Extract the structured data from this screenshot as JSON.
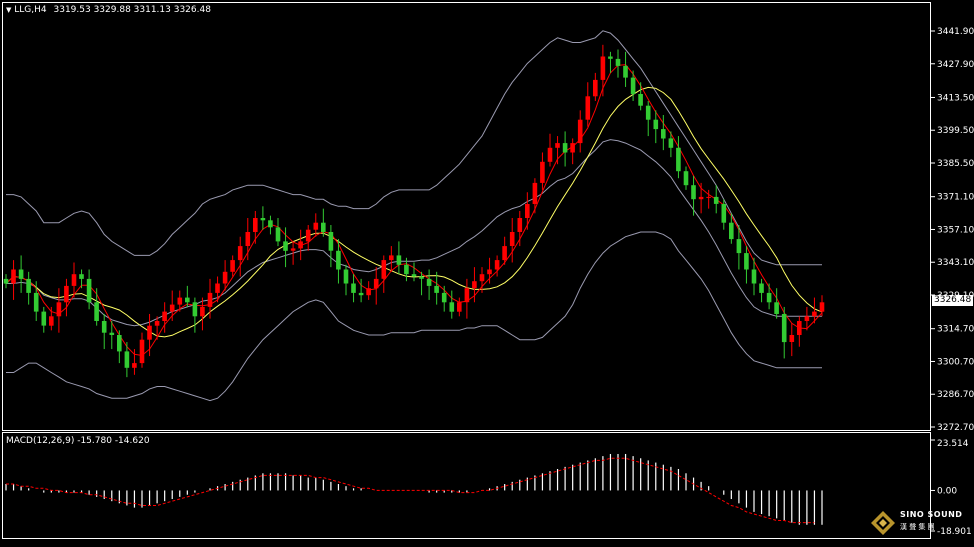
{
  "header": {
    "menu_glyph": "▼",
    "symbol": "LLG,H4",
    "ohlc": "3319.53 3329.88 3311.13 3326.48"
  },
  "macd": {
    "label": "MACD(12,26,9) -15.780 -14.620"
  },
  "current_price": "3326.48",
  "colors": {
    "background": "#000000",
    "bull": "#ff0000",
    "bear": "#33cc33",
    "ma_red": "#ff0000",
    "ma_yellow": "#ffff66",
    "band": "#9a9ab0",
    "macd_hist": "#ffffff",
    "macd_signal": "#ff0000",
    "axis": "#ffffff"
  },
  "logo": {
    "icon": "diamond-logo-icon",
    "name": "SINO SOUND",
    "sub": "漢 聲 集 團"
  },
  "chart_data": [
    {
      "type": "candlestick",
      "title": "LLG,H4",
      "yticks": [
        "3441.90",
        "3427.90",
        "3413.50",
        "3399.50",
        "3385.50",
        "3371.10",
        "3357.10",
        "3343.10",
        "3329.10",
        "3314.70",
        "3300.70",
        "3286.70",
        "3272.70"
      ],
      "ylim": [
        3272.7,
        3448
      ],
      "last_price": 3326.48,
      "indicators": [
        "bollinger_bands",
        "moving_average_red",
        "moving_average_yellow"
      ],
      "grid": false,
      "close": [
        3334,
        3340,
        3336,
        3330,
        3322,
        3316,
        3320,
        3326,
        3333,
        3338,
        3336,
        3326,
        3318,
        3313,
        3312,
        3305,
        3298,
        3300,
        3310,
        3316,
        3318,
        3322,
        3325,
        3328,
        3326,
        3320,
        3324,
        3330,
        3334,
        3339,
        3344,
        3350,
        3356,
        3362,
        3361,
        3358,
        3352,
        3348,
        3349,
        3352,
        3357,
        3360,
        3356,
        3348,
        3340,
        3334,
        3330,
        3329,
        3332,
        3336,
        3344,
        3346,
        3342,
        3338,
        3337,
        3336,
        3333,
        3330,
        3326,
        3322,
        3326,
        3332,
        3335,
        3338,
        3340,
        3344,
        3350,
        3356,
        3362,
        3368,
        3377,
        3386,
        3392,
        3394,
        3390,
        3394,
        3404,
        3414,
        3421,
        3431,
        3430,
        3427,
        3422,
        3415,
        3410,
        3404,
        3400,
        3396,
        3392,
        3382,
        3376,
        3370,
        3371,
        3371,
        3368,
        3360,
        3353,
        3347,
        3340,
        3334,
        3330,
        3326,
        3321,
        3309,
        3312,
        3318,
        3320,
        3322,
        3326
      ],
      "bollinger": {
        "upper": [
          3372,
          3372,
          3371,
          3368,
          3365,
          3360,
          3360,
          3360,
          3362,
          3364,
          3365,
          3364,
          3360,
          3355,
          3352,
          3350,
          3348,
          3346,
          3346,
          3346,
          3348,
          3351,
          3355,
          3358,
          3361,
          3364,
          3368,
          3370,
          3371,
          3372,
          3374,
          3375,
          3376,
          3376,
          3376,
          3375,
          3374,
          3373,
          3372,
          3372,
          3371,
          3370,
          3370,
          3368,
          3367,
          3367,
          3366,
          3366,
          3366,
          3368,
          3371,
          3373,
          3374,
          3374,
          3374,
          3374,
          3374,
          3376,
          3379,
          3382,
          3385,
          3389,
          3393,
          3397,
          3403,
          3409,
          3415,
          3420,
          3424,
          3428,
          3431,
          3434,
          3437,
          3439,
          3438,
          3437,
          3437,
          3438,
          3439,
          3442,
          3441,
          3438,
          3434,
          3430,
          3426,
          3421,
          3416,
          3411,
          3406,
          3401,
          3396,
          3391,
          3386,
          3381,
          3376,
          3370,
          3364,
          3358,
          3352,
          3347,
          3344,
          3343,
          3342,
          3342,
          3342,
          3342,
          3342,
          3342,
          3342
        ],
        "lower": [
          3296,
          3296,
          3298,
          3300,
          3300,
          3298,
          3296,
          3294,
          3292,
          3291,
          3290,
          3289,
          3287,
          3286,
          3285,
          3285,
          3285,
          3286,
          3287,
          3289,
          3290,
          3290,
          3289,
          3288,
          3287,
          3286,
          3285,
          3284,
          3285,
          3288,
          3292,
          3297,
          3302,
          3306,
          3310,
          3313,
          3316,
          3319,
          3322,
          3324,
          3326,
          3327,
          3326,
          3322,
          3318,
          3316,
          3314,
          3313,
          3312,
          3312,
          3312,
          3313,
          3313,
          3313,
          3313,
          3314,
          3314,
          3314,
          3314,
          3314,
          3314,
          3315,
          3315,
          3316,
          3316,
          3316,
          3314,
          3312,
          3310,
          3310,
          3310,
          3311,
          3314,
          3317,
          3320,
          3325,
          3332,
          3338,
          3343,
          3347,
          3350,
          3352,
          3354,
          3355,
          3356,
          3356,
          3356,
          3355,
          3353,
          3348,
          3344,
          3340,
          3336,
          3331,
          3325,
          3319,
          3313,
          3308,
          3304,
          3301,
          3300,
          3299,
          3298,
          3298,
          3298,
          3298,
          3298,
          3298,
          3298
        ]
      }
    },
    {
      "type": "bar",
      "title": "MACD(12,26,9)",
      "values": {
        "macd": -15.78,
        "signal": -14.62
      },
      "yticks": [
        "23.514",
        "0.00",
        "-18.901"
      ],
      "ylim": [
        -18.901,
        23.514
      ],
      "histogram": [
        3,
        3,
        2,
        1,
        0,
        -1,
        -1,
        -1,
        -1,
        -1,
        -1,
        -2,
        -3,
        -4,
        -5,
        -6,
        -7,
        -8,
        -8,
        -7,
        -6,
        -5,
        -4,
        -3,
        -2,
        -1,
        0,
        1,
        2,
        3,
        4,
        5,
        6,
        7,
        8,
        8,
        8,
        8,
        7,
        7,
        6,
        6,
        5,
        4,
        3,
        2,
        1,
        1,
        0,
        0,
        0,
        0,
        0,
        0,
        0,
        0,
        -1,
        -1,
        -1,
        -1,
        -1,
        -1,
        0,
        0,
        1,
        2,
        3,
        4,
        5,
        6,
        7,
        8,
        9,
        10,
        11,
        12,
        13,
        14,
        15,
        16,
        17,
        17,
        17,
        16,
        15,
        14,
        13,
        12,
        11,
        10,
        8,
        6,
        4,
        2,
        0,
        -2,
        -4,
        -6,
        -8,
        -10,
        -11,
        -12,
        -13,
        -14,
        -15,
        -16,
        -16,
        -16,
        -16
      ],
      "signal_line": [
        3,
        3,
        2,
        2,
        1,
        1,
        0,
        0,
        -1,
        -1,
        -1,
        -2,
        -2,
        -3,
        -4,
        -5,
        -6,
        -6,
        -7,
        -7,
        -7,
        -6,
        -5,
        -4,
        -3,
        -2,
        -1,
        0,
        1,
        2,
        3,
        4,
        5,
        6,
        7,
        7,
        7,
        7,
        7,
        7,
        7,
        6,
        6,
        5,
        4,
        3,
        2,
        1,
        1,
        0,
        0,
        0,
        0,
        0,
        0,
        0,
        0,
        0,
        0,
        0,
        -1,
        -1,
        -1,
        0,
        0,
        1,
        2,
        3,
        4,
        5,
        6,
        7,
        8,
        9,
        10,
        11,
        12,
        13,
        14,
        14,
        15,
        15,
        15,
        14,
        13,
        12,
        11,
        10,
        9,
        7,
        5,
        3,
        1,
        -1,
        -3,
        -5,
        -7,
        -8,
        -10,
        -11,
        -12,
        -13,
        -14,
        -14,
        -15,
        -15,
        -15,
        -15
      ]
    }
  ]
}
